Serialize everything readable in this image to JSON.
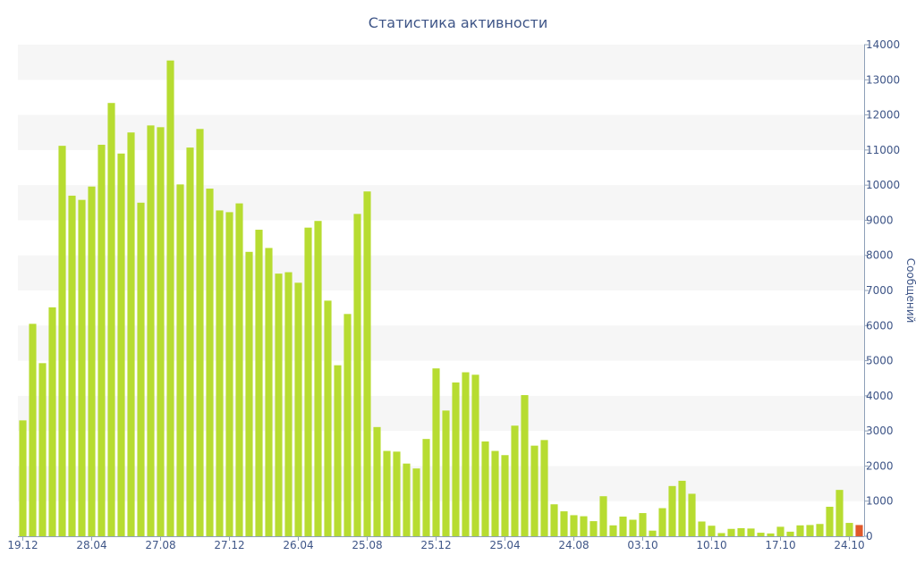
{
  "chart_data": {
    "type": "bar",
    "title": "Статистика активности",
    "ylabel": "Сообщений",
    "ylim": [
      0,
      14000
    ],
    "yticks": [
      0,
      1000,
      2000,
      3000,
      4000,
      5000,
      6000,
      7000,
      8000,
      9000,
      10000,
      11000,
      12000,
      13000,
      14000
    ],
    "y_axis_side": "right",
    "grid": "alternating horizontal bands",
    "x_tick_labels": [
      {
        "label": "19.12",
        "index": 0
      },
      {
        "label": "28.04",
        "index": 7
      },
      {
        "label": "27.08",
        "index": 14
      },
      {
        "label": "27.12",
        "index": 21
      },
      {
        "label": "26.04",
        "index": 28
      },
      {
        "label": "25.08",
        "index": 35
      },
      {
        "label": "25.12",
        "index": 42
      },
      {
        "label": "25.04",
        "index": 49
      },
      {
        "label": "24.08",
        "index": 56
      },
      {
        "label": "03.10",
        "index": 63
      },
      {
        "label": "10.10",
        "index": 70
      },
      {
        "label": "17.10",
        "index": 77
      },
      {
        "label": "24.10",
        "index": 84
      }
    ],
    "bar_color": "#b7dc31",
    "highlight_color": "#e0592a",
    "highlight_index": 85,
    "values": [
      3300,
      6050,
      4930,
      6520,
      11120,
      9700,
      9580,
      9960,
      11150,
      12340,
      10900,
      11500,
      9500,
      11700,
      11650,
      13550,
      10020,
      11070,
      11600,
      9900,
      9280,
      9230,
      9480,
      8100,
      8730,
      8210,
      7480,
      7520,
      7220,
      8790,
      8980,
      6710,
      4870,
      6330,
      9180,
      9820,
      3110,
      2430,
      2410,
      2070,
      1930,
      2770,
      4780,
      3580,
      4380,
      4670,
      4600,
      2700,
      2430,
      2310,
      3150,
      4020,
      2580,
      2740,
      910,
      710,
      600,
      570,
      430,
      1140,
      310,
      560,
      470,
      660,
      160,
      800,
      1430,
      1580,
      1210,
      420,
      300,
      90,
      210,
      230,
      220,
      100,
      80,
      270,
      130,
      310,
      320,
      350,
      840,
      1320,
      380,
      320
    ]
  }
}
